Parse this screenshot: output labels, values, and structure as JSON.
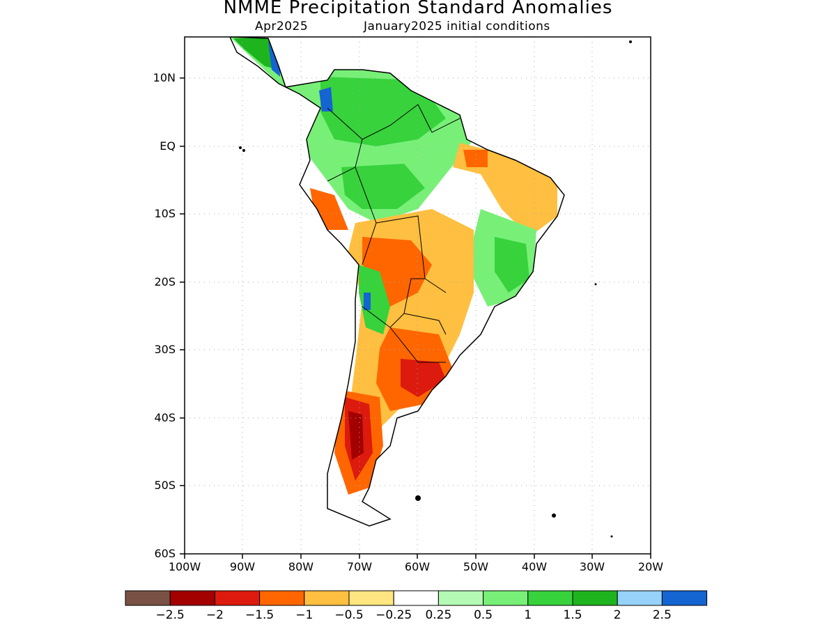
{
  "title": "NMME Precipitation Standard Anomalies",
  "subtitle_left": "Apr2025",
  "subtitle_right": "January2025 initial conditions",
  "lat_labels": [
    "10N",
    "EQ",
    "10S",
    "20S",
    "30S",
    "40S",
    "50S",
    "60S"
  ],
  "lon_labels": [
    "100W",
    "90W",
    "80W",
    "70W",
    "60W",
    "50W",
    "40W",
    "30W",
    "20W"
  ],
  "colorbar": {
    "colors": [
      "#7a5245",
      "#a30000",
      "#dc1a0d",
      "#ff6600",
      "#ffbf40",
      "#ffe680",
      "#ffffff",
      "#b4fab4",
      "#78f078",
      "#37d23c",
      "#1eb41e",
      "#96d2fa",
      "#1464d2"
    ],
    "labels": [
      "−2.5",
      "−2",
      "−1.5",
      "−1",
      "−0.5",
      "−0.25",
      "0.25",
      "0.5",
      "1",
      "1.5",
      "2",
      "2.5"
    ]
  },
  "colors": {
    "outline": "#000000",
    "grid": "#aaaaaa"
  }
}
